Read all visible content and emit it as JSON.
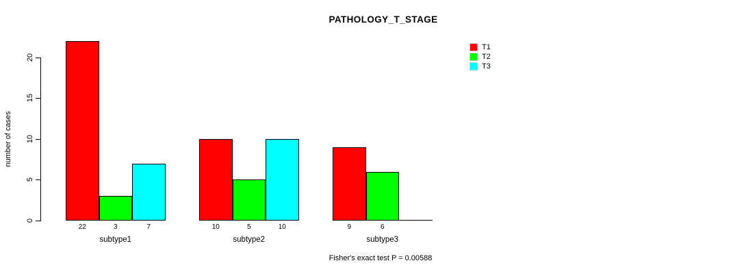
{
  "title": "PATHOLOGY_T_STAGE",
  "y_axis": {
    "label": "number of cases",
    "ticks": [
      0,
      5,
      10,
      15,
      20
    ]
  },
  "legend": {
    "items": [
      {
        "label": "T1",
        "color": "#ff0000"
      },
      {
        "label": "T2",
        "color": "#00ff00"
      },
      {
        "label": "T3",
        "color": "#00ffff"
      }
    ]
  },
  "footer": "Fisher's exact test P = 0.00588",
  "chart_data": {
    "type": "bar",
    "title": "PATHOLOGY_T_STAGE",
    "categories": [
      "subtype1",
      "subtype2",
      "subtype3"
    ],
    "series": [
      {
        "name": "T1",
        "color": "#ff0000",
        "values": [
          22,
          10,
          9
        ]
      },
      {
        "name": "T2",
        "color": "#00ff00",
        "values": [
          3,
          5,
          6
        ]
      },
      {
        "name": "T3",
        "color": "#00ffff",
        "values": [
          7,
          10,
          0
        ]
      }
    ],
    "bar_value_labels": [
      [
        "22",
        "3",
        "7"
      ],
      [
        "10",
        "5",
        "10"
      ],
      [
        "9",
        "6",
        ""
      ]
    ],
    "xlabel": "",
    "ylabel": "number of cases",
    "ylim": [
      0,
      20
    ],
    "grid": false,
    "legend_position": "top-right",
    "annotation": "Fisher's exact test P = 0.00588"
  }
}
